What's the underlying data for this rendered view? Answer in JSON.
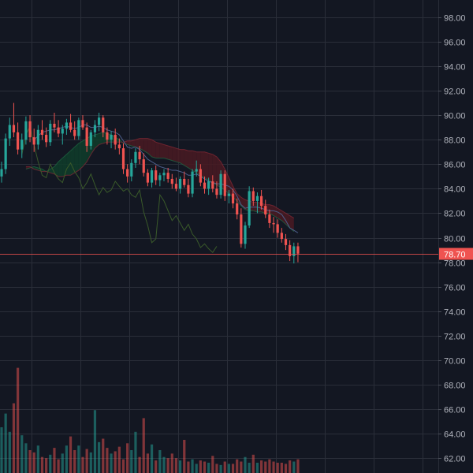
{
  "chart_data": {
    "type": "candlestick",
    "title": "",
    "xlabel": "",
    "ylabel": "",
    "ylim": [
      60.8,
      99.4
    ],
    "grid": true,
    "y_ticks": [
      "98.00",
      "96.00",
      "94.00",
      "92.00",
      "90.00",
      "88.00",
      "86.00",
      "84.00",
      "82.00",
      "80.00",
      "78.00",
      "76.00",
      "74.00",
      "72.00",
      "70.00",
      "68.00",
      "66.00",
      "64.00",
      "62.00"
    ],
    "last_price": 78.7,
    "last_price_label": "78.70",
    "colors": {
      "up": "#26a69a",
      "down": "#ef5350",
      "background": "#131722",
      "grid": "#2a2e39",
      "axis_text": "#b2b5be",
      "cloud_bull": "#0f3d2a",
      "cloud_bear": "#4a1a22",
      "conversion_line": "#4c5e8a",
      "lagging_line": "#3a5a2a"
    },
    "candle_series": [
      [
        85.0,
        86.2,
        84.5,
        85.6
      ],
      [
        85.6,
        88.5,
        85.2,
        88.1
      ],
      [
        88.1,
        89.8,
        87.5,
        89.2
      ],
      [
        89.2,
        91.0,
        88.2,
        88.6
      ],
      [
        88.6,
        89.4,
        86.8,
        87.2
      ],
      [
        87.2,
        88.5,
        86.5,
        88.0
      ],
      [
        88.0,
        89.9,
        87.6,
        89.5
      ],
      [
        89.5,
        90.0,
        87.8,
        88.2
      ],
      [
        88.2,
        88.9,
        87.0,
        87.6
      ],
      [
        87.6,
        89.2,
        87.2,
        88.8
      ],
      [
        88.8,
        89.6,
        88.0,
        88.4
      ],
      [
        88.4,
        89.0,
        87.4,
        87.8
      ],
      [
        87.8,
        89.6,
        87.5,
        89.3
      ],
      [
        89.3,
        90.2,
        88.6,
        89.0
      ],
      [
        89.0,
        89.6,
        88.2,
        88.5
      ],
      [
        88.5,
        89.2,
        87.6,
        88.9
      ],
      [
        88.9,
        89.7,
        88.4,
        89.4
      ],
      [
        89.4,
        90.1,
        88.6,
        88.8
      ],
      [
        88.8,
        89.5,
        88.0,
        88.3
      ],
      [
        88.3,
        89.8,
        88.0,
        89.6
      ],
      [
        89.6,
        90.0,
        88.8,
        89.0
      ],
      [
        89.0,
        89.4,
        87.0,
        87.5
      ],
      [
        87.5,
        88.8,
        87.2,
        88.6
      ],
      [
        88.6,
        89.6,
        88.2,
        89.2
      ],
      [
        89.2,
        90.2,
        88.7,
        89.8
      ],
      [
        89.8,
        90.0,
        88.2,
        88.6
      ],
      [
        88.6,
        89.0,
        87.6,
        88.0
      ],
      [
        88.0,
        88.7,
        87.3,
        88.4
      ],
      [
        88.4,
        88.9,
        87.2,
        87.6
      ],
      [
        87.6,
        88.1,
        86.8,
        87.3
      ],
      [
        87.3,
        87.7,
        85.2,
        85.6
      ],
      [
        85.6,
        86.0,
        84.5,
        85.0
      ],
      [
        85.0,
        86.4,
        84.6,
        86.1
      ],
      [
        86.1,
        87.3,
        85.7,
        87.0
      ],
      [
        87.0,
        87.5,
        86.0,
        86.4
      ],
      [
        86.4,
        86.9,
        85.0,
        85.3
      ],
      [
        85.3,
        85.6,
        84.2,
        84.5
      ],
      [
        84.5,
        85.7,
        84.1,
        85.5
      ],
      [
        85.5,
        85.9,
        84.3,
        84.7
      ],
      [
        84.7,
        85.3,
        84.2,
        85.1
      ],
      [
        85.1,
        85.6,
        84.6,
        85.3
      ],
      [
        85.3,
        85.7,
        84.5,
        84.8
      ],
      [
        84.8,
        85.2,
        84.0,
        84.4
      ],
      [
        84.4,
        84.9,
        83.8,
        84.0
      ],
      [
        84.0,
        85.0,
        83.6,
        84.8
      ],
      [
        84.8,
        85.4,
        84.1,
        84.3
      ],
      [
        84.3,
        84.8,
        83.3,
        83.6
      ],
      [
        83.6,
        85.6,
        83.3,
        85.4
      ],
      [
        85.4,
        86.3,
        85.0,
        85.6
      ],
      [
        85.6,
        86.0,
        84.2,
        84.5
      ],
      [
        84.5,
        85.0,
        83.6,
        84.0
      ],
      [
        84.0,
        84.9,
        83.5,
        84.6
      ],
      [
        84.6,
        85.1,
        83.7,
        84.0
      ],
      [
        84.0,
        84.6,
        83.2,
        83.5
      ],
      [
        83.5,
        85.5,
        83.2,
        85.2
      ],
      [
        85.2,
        85.5,
        83.0,
        83.4
      ],
      [
        83.4,
        83.9,
        82.8,
        83.6
      ],
      [
        83.6,
        84.0,
        82.4,
        82.8
      ],
      [
        82.8,
        83.2,
        81.5,
        81.9
      ],
      [
        81.9,
        82.4,
        79.2,
        79.5
      ],
      [
        79.5,
        81.3,
        79.1,
        81.0
      ],
      [
        81.0,
        84.2,
        80.8,
        83.8
      ],
      [
        83.8,
        84.1,
        82.6,
        83.0
      ],
      [
        83.0,
        83.7,
        82.0,
        83.4
      ],
      [
        83.4,
        83.9,
        82.3,
        82.6
      ],
      [
        82.6,
        83.1,
        81.6,
        81.9
      ],
      [
        81.9,
        82.3,
        80.8,
        81.2
      ],
      [
        81.2,
        81.7,
        80.4,
        81.1
      ],
      [
        81.1,
        81.5,
        80.0,
        80.4
      ],
      [
        80.4,
        80.8,
        79.6,
        79.9
      ],
      [
        79.9,
        80.3,
        79.0,
        79.4
      ],
      [
        79.4,
        79.8,
        78.1,
        78.5
      ],
      [
        78.5,
        79.6,
        77.9,
        79.3
      ],
      [
        79.3,
        79.6,
        78.0,
        78.7
      ]
    ],
    "volume_series": [
      40,
      52,
      36,
      61,
      92,
      33,
      26,
      20,
      18,
      24,
      14,
      13,
      16,
      22,
      12,
      17,
      24,
      32,
      20,
      24,
      14,
      21,
      18,
      55,
      27,
      30,
      22,
      17,
      19,
      23,
      12,
      26,
      20,
      36,
      14,
      48,
      17,
      25,
      11,
      20,
      14,
      13,
      17,
      13,
      11,
      29,
      10,
      12,
      8,
      11,
      10,
      9,
      15,
      8,
      7,
      10,
      8,
      8,
      12,
      10,
      14,
      9,
      16,
      9,
      11,
      10,
      12,
      10,
      9,
      9,
      8,
      11,
      10,
      12
    ],
    "ichimoku": {
      "span_a": [
        85.6,
        85.7,
        85.8,
        85.7,
        85.6,
        85.4,
        85.6,
        85.8,
        86.2,
        86.5,
        86.8,
        87.1,
        87.4,
        87.7,
        87.9,
        88.1,
        88.3,
        88.4,
        88.5,
        88.6,
        88.5,
        88.4,
        88.2,
        88.0,
        87.7,
        87.6,
        87.5,
        87.4,
        87.3,
        87.1,
        86.9,
        86.6,
        86.5,
        86.5,
        86.5,
        86.4,
        86.3,
        86.2,
        86.1,
        85.9,
        85.7,
        85.5,
        85.3,
        85.1,
        84.9,
        84.7,
        84.5,
        84.3,
        84.1,
        83.9,
        83.6,
        83.3,
        83.0,
        82.6,
        82.3,
        82.2,
        82.2,
        82.1,
        82.1,
        82.0,
        82.0,
        81.8,
        81.6,
        81.4,
        81.1,
        80.8,
        80.5
      ],
      "span_b": [
        85.8,
        85.8,
        85.6,
        85.5,
        85.4,
        85.4,
        85.3,
        85.2,
        85.0,
        85.0,
        85.1,
        85.1,
        85.3,
        85.5,
        85.8,
        86.2,
        86.8,
        87.3,
        87.6,
        87.7,
        87.8,
        87.8,
        87.8,
        87.8,
        87.8,
        87.9,
        87.9,
        88.0,
        88.1,
        88.1,
        88.1,
        88.0,
        87.8,
        87.7,
        87.6,
        87.5,
        87.4,
        87.3,
        87.2,
        87.2,
        87.1,
        87.1,
        87.0,
        87.0,
        87.0,
        86.9,
        86.8,
        86.6,
        86.2,
        85.6,
        84.9,
        84.2,
        83.6,
        83.3,
        83.1,
        83.0,
        82.9,
        82.9,
        82.8,
        82.7,
        82.7,
        82.6,
        82.4,
        82.2,
        82.0,
        81.8,
        81.6
      ]
    },
    "conversion_line": [
      null,
      null,
      null,
      null,
      null,
      null,
      null,
      null,
      88.0,
      88.3,
      88.6,
      88.7,
      88.8,
      88.8,
      88.9,
      89.0,
      89.1,
      89.0,
      88.9,
      89.0,
      89.2,
      89.2,
      89.0,
      89.0,
      89.1,
      89.0,
      88.8,
      88.7,
      88.6,
      88.4,
      87.9,
      87.4,
      87.3,
      87.4,
      87.2,
      86.8,
      86.4,
      86.2,
      86.0,
      85.8,
      85.7,
      85.6,
      85.5,
      85.5,
      85.4,
      85.3,
      85.1,
      85.1,
      85.2,
      85.0,
      84.8,
      84.6,
      84.5,
      84.4,
      84.4,
      84.3,
      84.2,
      83.9,
      83.4,
      82.7,
      82.4,
      82.5,
      82.5,
      82.5,
      82.4,
      82.3,
      82.2,
      82.2,
      82.1,
      81.9,
      81.4,
      80.8,
      80.6,
      80.4
    ],
    "lagging_line": [
      86.8,
      88.4,
      89.1,
      87.6,
      86.2,
      85.1,
      84.9,
      86.0,
      85.3,
      84.8,
      84.5,
      85.6,
      86.1,
      85.4,
      84.9,
      84.0,
      84.5,
      85.2,
      84.3,
      83.5,
      84.1,
      83.7,
      83.9,
      84.6,
      84.2,
      83.8,
      84.0,
      83.5,
      83.3,
      83.9,
      82.1,
      81.0,
      79.6,
      79.9,
      83.5,
      83.0,
      82.2,
      81.4,
      81.8,
      81.2,
      80.6,
      81.1,
      80.3,
      79.9,
      79.2,
      79.5,
      79.1,
      78.8,
      79.3
    ]
  }
}
